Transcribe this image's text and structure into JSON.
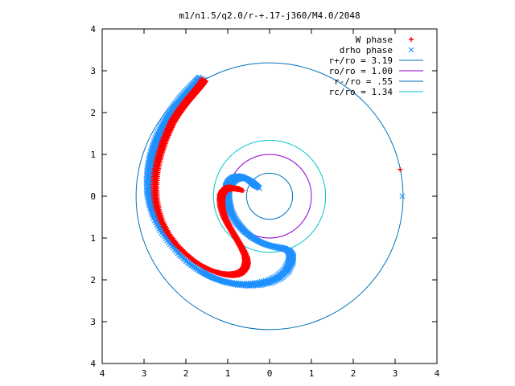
{
  "chart_data": {
    "type": "scatter",
    "title": "m1/n1.5/q2.0/r-+.17-j360/M4.0/2048",
    "xlabel": "",
    "ylabel": "",
    "xlim": [
      -4,
      4
    ],
    "ylim": [
      -4,
      4
    ],
    "x_tick_values": [
      -4,
      -3,
      -2,
      -1,
      0,
      1,
      2,
      3,
      4
    ],
    "x_tick_labels": [
      "4",
      "3",
      "2",
      "1",
      "0",
      "1",
      "2",
      "3",
      "4"
    ],
    "y_tick_values": [
      4,
      3,
      2,
      1,
      0,
      -1,
      -2,
      -3,
      -4
    ],
    "y_tick_labels": [
      "4",
      "3",
      "2",
      "1",
      "0",
      "1",
      "2",
      "3",
      "4"
    ],
    "grid": false,
    "legend_position": "top-right",
    "series": [
      {
        "name": "W phase",
        "kind": "points",
        "marker": "+",
        "color": "#ff0000",
        "x": [
          -1.57,
          -1.62,
          -1.7,
          -1.8,
          -1.92,
          -2.05,
          -2.18,
          -2.32,
          -2.42,
          -2.52,
          -2.6,
          -2.67,
          -2.72,
          -2.74,
          -2.73,
          -2.68,
          -2.58,
          -2.42,
          -2.22,
          -2.0,
          -1.78,
          -1.55,
          -1.33,
          -1.12,
          -0.93,
          -0.77,
          -0.65,
          -0.58,
          -0.55,
          -0.57,
          -0.64,
          -0.74,
          -0.86,
          -0.98,
          -1.08,
          -1.14,
          -1.16,
          -1.15,
          -1.1,
          -1.02,
          -0.92,
          -0.8,
          -0.68,
          3.12
        ],
        "y": [
          2.78,
          2.7,
          2.6,
          2.48,
          2.34,
          2.18,
          2.0,
          1.78,
          1.56,
          1.32,
          1.08,
          0.82,
          0.54,
          0.26,
          -0.02,
          -0.3,
          -0.6,
          -0.9,
          -1.16,
          -1.38,
          -1.56,
          -1.7,
          -1.8,
          -1.86,
          -1.88,
          -1.86,
          -1.8,
          -1.7,
          -1.58,
          -1.44,
          -1.28,
          -1.1,
          -0.9,
          -0.7,
          -0.5,
          -0.3,
          -0.12,
          0.02,
          0.12,
          0.18,
          0.2,
          0.18,
          0.16,
          0.64
        ]
      },
      {
        "name": "drho phase",
        "kind": "points",
        "marker": "x",
        "color": "#1e90ff",
        "x": [
          -1.62,
          -1.72,
          -1.84,
          -1.98,
          -2.12,
          -2.26,
          -2.4,
          -2.52,
          -2.64,
          -2.74,
          -2.82,
          -2.87,
          -2.89,
          -2.88,
          -2.82,
          -2.72,
          -2.56,
          -2.36,
          -2.14,
          -1.9,
          -1.64,
          -1.38,
          -1.1,
          -0.82,
          -0.54,
          -0.26,
          0.0,
          0.22,
          0.4,
          0.5,
          0.52,
          0.44,
          0.28,
          0.06,
          -0.18,
          -0.4,
          -0.6,
          -0.76,
          -0.88,
          -0.96,
          -1.0,
          -1.02,
          -1.0,
          -0.94,
          -0.84,
          -0.72,
          -0.6,
          -0.48,
          -0.38,
          -0.3,
          3.17
        ],
        "y": [
          2.82,
          2.72,
          2.6,
          2.46,
          2.3,
          2.12,
          1.92,
          1.7,
          1.46,
          1.2,
          0.92,
          0.64,
          0.34,
          0.04,
          -0.26,
          -0.56,
          -0.86,
          -1.14,
          -1.4,
          -1.62,
          -1.8,
          -1.94,
          -2.04,
          -2.1,
          -2.12,
          -2.1,
          -2.04,
          -1.94,
          -1.78,
          -1.58,
          -1.4,
          -1.28,
          -1.24,
          -1.2,
          -1.12,
          -1.0,
          -0.84,
          -0.66,
          -0.48,
          -0.3,
          -0.12,
          0.06,
          0.22,
          0.34,
          0.42,
          0.46,
          0.44,
          0.38,
          0.3,
          0.22,
          0.0
        ]
      },
      {
        "name": "r+/ro = 3.19",
        "kind": "circle",
        "radius": 3.19,
        "color": "#0072bd"
      },
      {
        "name": "ro/ro = 1.00",
        "kind": "circle",
        "radius": 1.0,
        "color": "#9400d3"
      },
      {
        "name": "r-/ro = .55",
        "kind": "circle",
        "radius": 0.55,
        "color": "#0072bd"
      },
      {
        "name": "rc/ro = 1.34",
        "kind": "circle",
        "radius": 1.34,
        "color": "#00c8c8"
      }
    ]
  }
}
